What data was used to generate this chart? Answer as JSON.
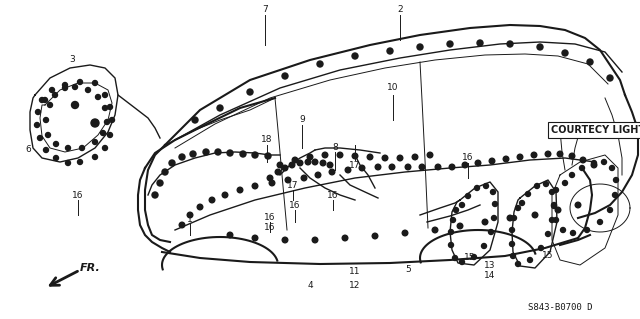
{
  "background_color": "#ffffff",
  "diagram_color": "#1a1a1a",
  "courtesy_light_label": "COURTECY LIGHT",
  "part_code": "S843-B0700 D",
  "fig_width": 6.4,
  "fig_height": 3.19,
  "dpi": 100
}
